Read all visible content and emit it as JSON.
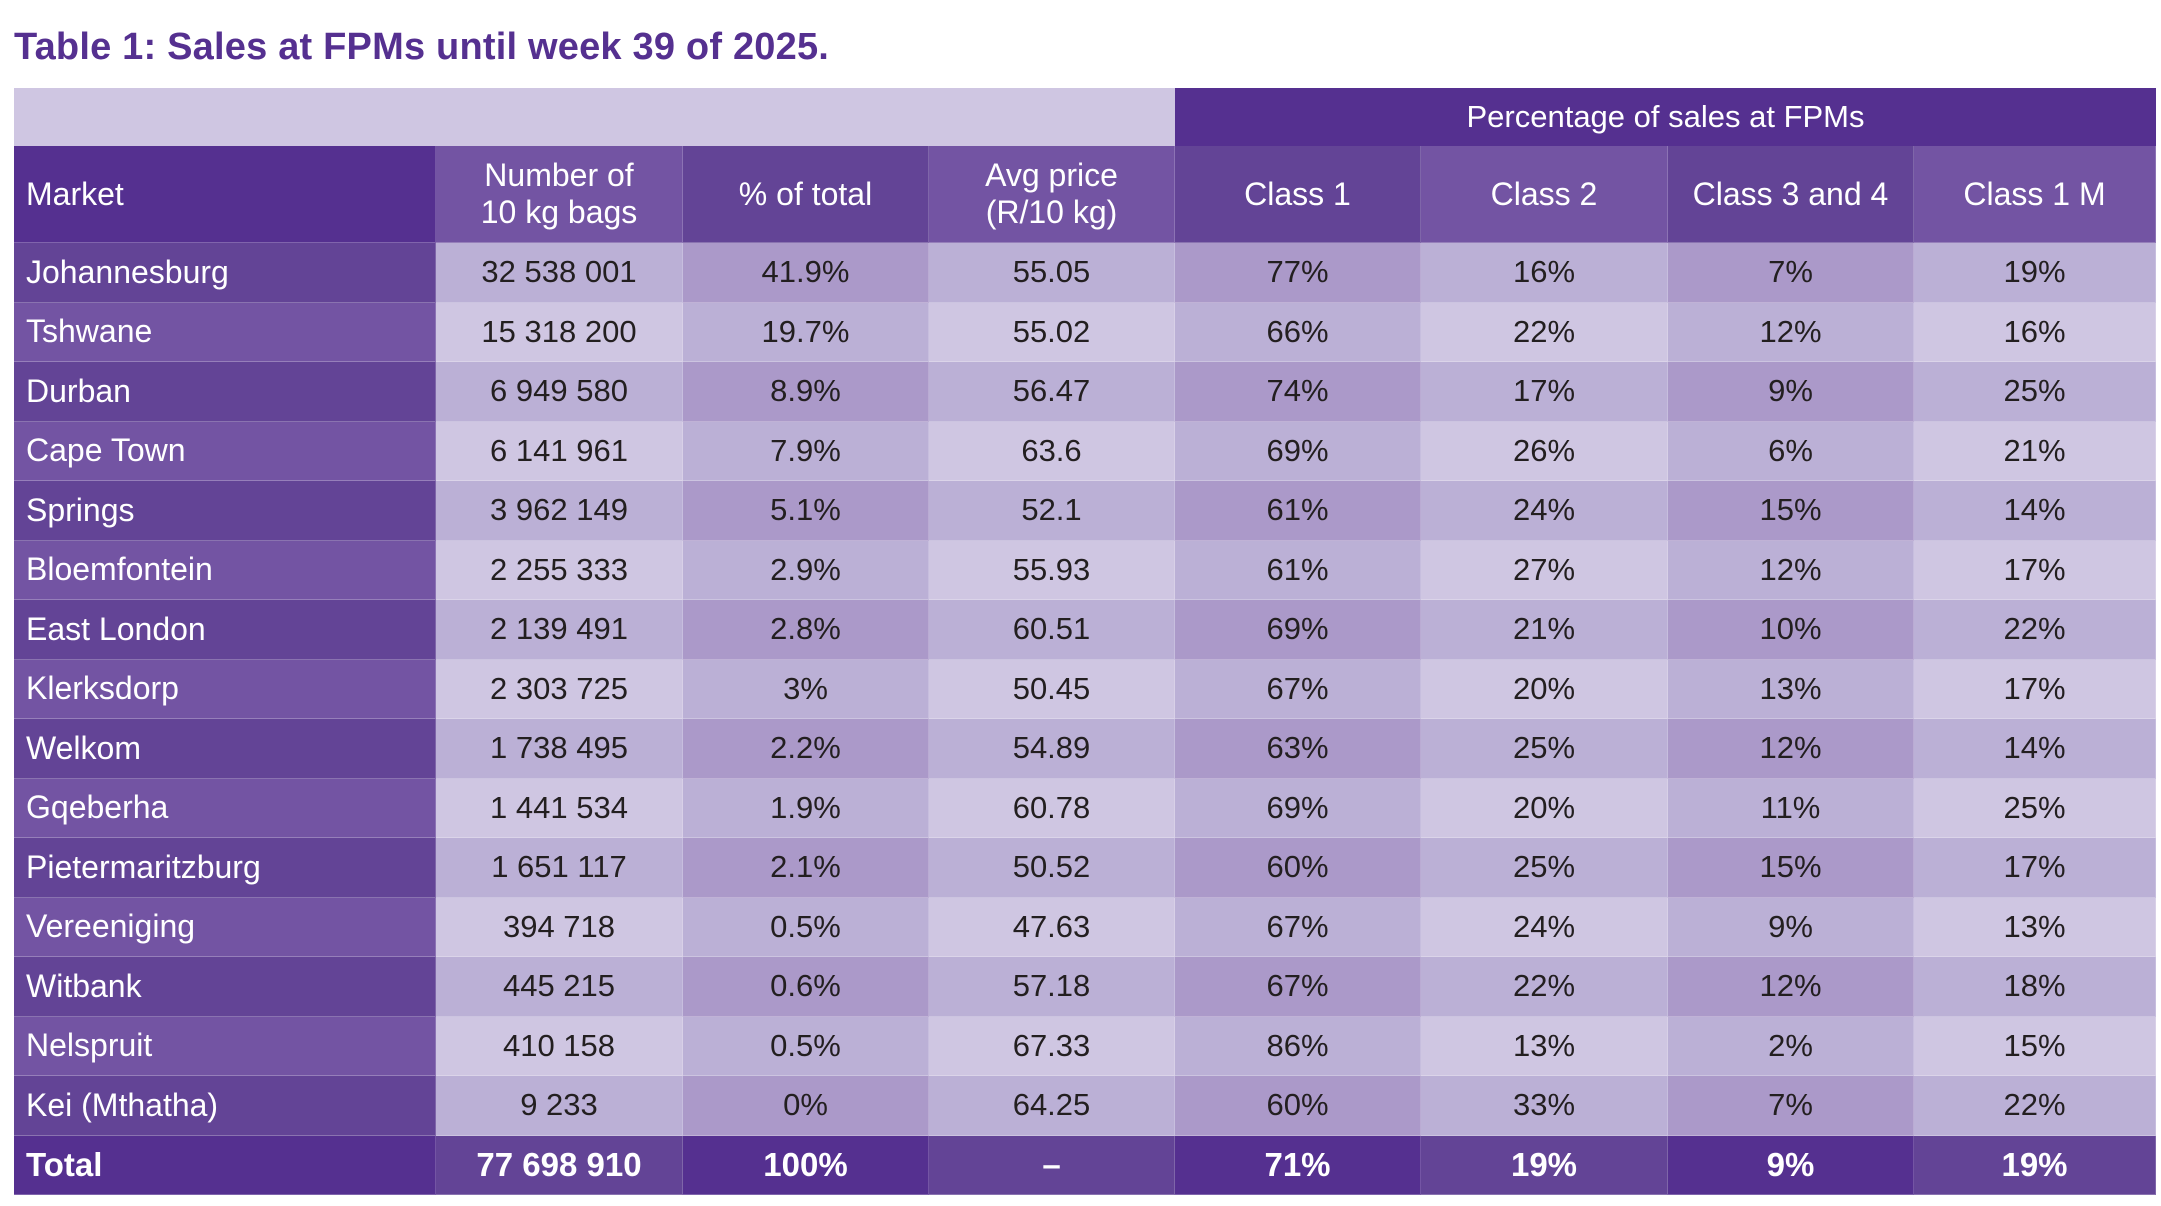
{
  "title": "Table 1: Sales at FPMs until week 39 of 2025.",
  "group_header": "Percentage of sales at FPMs",
  "columns": [
    "Market",
    "Number of\n10 kg bags",
    "% of total",
    "Avg price\n(R/10 kg)",
    "Class 1",
    "Class 2",
    "Class 3 and 4",
    "Class 1 M"
  ],
  "rows": [
    [
      "Johannesburg",
      "32 538 001",
      "41.9%",
      "55.05",
      "77%",
      "16%",
      "7%",
      "19%"
    ],
    [
      "Tshwane",
      "15 318 200",
      "19.7%",
      "55.02",
      "66%",
      "22%",
      "12%",
      "16%"
    ],
    [
      "Durban",
      "6 949 580",
      "8.9%",
      "56.47",
      "74%",
      "17%",
      "9%",
      "25%"
    ],
    [
      "Cape Town",
      "6 141 961",
      "7.9%",
      "63.6",
      "69%",
      "26%",
      "6%",
      "21%"
    ],
    [
      "Springs",
      "3 962 149",
      "5.1%",
      "52.1",
      "61%",
      "24%",
      "15%",
      "14%"
    ],
    [
      "Bloemfontein",
      "2 255 333",
      "2.9%",
      "55.93",
      "61%",
      "27%",
      "12%",
      "17%"
    ],
    [
      "East London",
      "2 139 491",
      "2.8%",
      "60.51",
      "69%",
      "21%",
      "10%",
      "22%"
    ],
    [
      "Klerksdorp",
      "2 303 725",
      "3%",
      "50.45",
      "67%",
      "20%",
      "13%",
      "17%"
    ],
    [
      "Welkom",
      "1 738 495",
      "2.2%",
      "54.89",
      "63%",
      "25%",
      "12%",
      "14%"
    ],
    [
      "Gqeberha",
      "1 441 534",
      "1.9%",
      "60.78",
      "69%",
      "20%",
      "11%",
      "25%"
    ],
    [
      "Pietermaritzburg",
      "1 651 117",
      "2.1%",
      "50.52",
      "60%",
      "25%",
      "15%",
      "17%"
    ],
    [
      "Vereeniging",
      "394 718",
      "0.5%",
      "47.63",
      "67%",
      "24%",
      "9%",
      "13%"
    ],
    [
      "Witbank",
      "445 215",
      "0.6%",
      "57.18",
      "67%",
      "22%",
      "12%",
      "18%"
    ],
    [
      "Nelspruit",
      "410 158",
      "0.5%",
      "67.33",
      "86%",
      "13%",
      "2%",
      "15%"
    ],
    [
      "Kei (Mthatha)",
      "9 233",
      "0%",
      "64.25",
      "60%",
      "33%",
      "7%",
      "22%"
    ]
  ],
  "total": [
    "Total",
    "77 698 910",
    "100%",
    "–",
    "71%",
    "19%",
    "9%",
    "19%"
  ],
  "colors": {
    "title": "#553090",
    "header_dark": "#553090",
    "header_mid": "#634496",
    "header_light": "#7354a3",
    "cell_light": "#cfc6e2",
    "cell_mid": "#bbb0d6",
    "cell_dark": "#ab99c9"
  }
}
